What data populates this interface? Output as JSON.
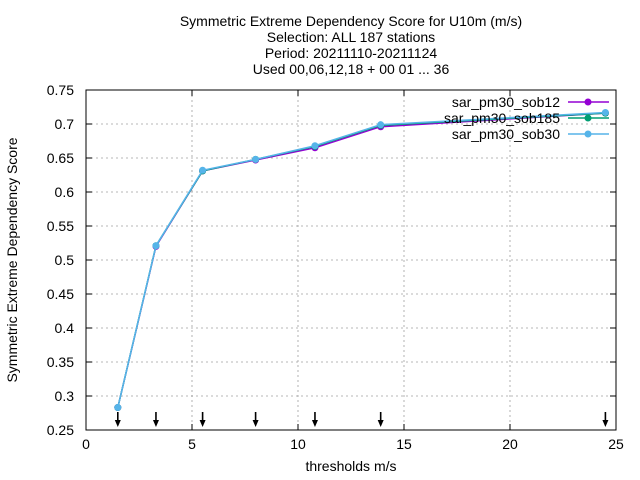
{
  "chart_data": {
    "type": "line",
    "title_lines": [
      "Symmetric Extreme Dependency Score  for U10m (m/s)",
      "Selection: ALL    187 stations",
      "Period: 20211110-20211124",
      "Used 00,06,12,18 + 00 01 ... 36"
    ],
    "xlabel": "thresholds m/s",
    "ylabel": "Symmetric Extreme Dependency Score",
    "xlim": [
      0,
      25
    ],
    "ylim": [
      0.25,
      0.75
    ],
    "xticks": [
      0,
      5,
      10,
      15,
      20,
      25
    ],
    "yticks": [
      0.25,
      0.3,
      0.35,
      0.4,
      0.45,
      0.5,
      0.55,
      0.6,
      0.65,
      0.7,
      0.75
    ],
    "grid": true,
    "legend_position": "top-right",
    "x": [
      1.5,
      3.3,
      5.5,
      8.0,
      10.8,
      13.9,
      24.5
    ],
    "series": [
      {
        "name": "sar_pm30_sob12",
        "color": "#9400d3",
        "values": [
          0.283,
          0.52,
          0.631,
          0.647,
          0.665,
          0.696,
          0.716
        ]
      },
      {
        "name": "sar_pm30_sob185",
        "color": "#009e73",
        "values": [
          0.283,
          0.521,
          0.631,
          0.648,
          0.667,
          0.698,
          0.716
        ]
      },
      {
        "name": "sar_pm30_sob30",
        "color": "#56b4e9",
        "values": [
          0.283,
          0.521,
          0.632,
          0.648,
          0.668,
          0.699,
          0.717
        ]
      }
    ],
    "threshold_markers": [
      1.5,
      3.3,
      5.5,
      8.0,
      10.8,
      13.9,
      24.5
    ]
  }
}
